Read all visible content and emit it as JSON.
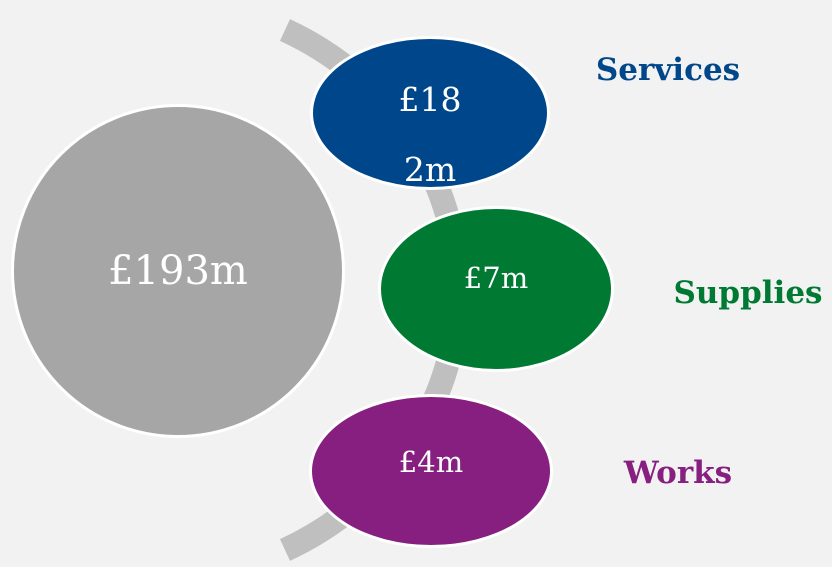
{
  "total": {
    "label": "£193m"
  },
  "items": [
    {
      "value": "£182m",
      "name": "Services"
    },
    {
      "value": "£7m",
      "name": "Supplies"
    },
    {
      "value": "£4m",
      "name": "Works"
    }
  ]
}
